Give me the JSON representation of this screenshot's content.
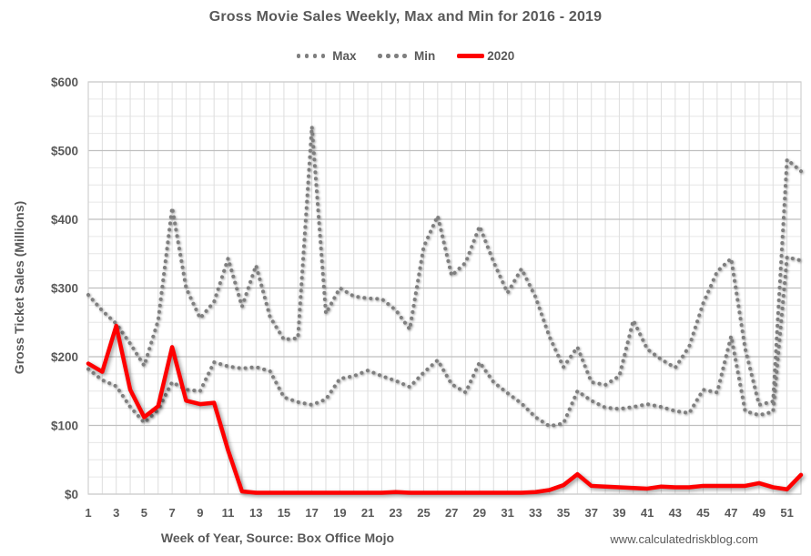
{
  "title": "Gross Movie Sales Weekly, Max and Min for 2016 - 2019",
  "legend": [
    {
      "label": "Max",
      "style": "dotted",
      "color": "#7f7f7f"
    },
    {
      "label": "Min",
      "style": "dotted",
      "color": "#7f7f7f"
    },
    {
      "label": "2020",
      "style": "solid",
      "color": "#fe0000"
    }
  ],
  "x_axis": {
    "title": "Week of Year, Source: Box Office Mojo",
    "tick_labels": [
      "1",
      "3",
      "5",
      "7",
      "9",
      "11",
      "13",
      "15",
      "17",
      "19",
      "21",
      "23",
      "25",
      "27",
      "29",
      "31",
      "33",
      "35",
      "37",
      "39",
      "41",
      "43",
      "45",
      "47",
      "49",
      "51"
    ]
  },
  "y_axis": {
    "title": "Gross Ticket Sales (Millions)",
    "tick_labels": [
      "$0",
      "$100",
      "$200",
      "$300",
      "$400",
      "$500",
      "$600"
    ]
  },
  "watermark": "www.calculatedriskblog.com",
  "colors": {
    "text": "#595959",
    "dotted_series": "#7f7f7f",
    "red_series": "#fe0000",
    "major_gridline": "#bfbfbf",
    "minor_gridline": "#e6e6e6",
    "weekly_gridline": "#dedede",
    "plot_border": "#d0d0d0"
  },
  "chart_data": {
    "type": "line",
    "x": [
      1,
      2,
      3,
      4,
      5,
      6,
      7,
      8,
      9,
      10,
      11,
      12,
      13,
      14,
      15,
      16,
      17,
      18,
      19,
      20,
      21,
      22,
      23,
      24,
      25,
      26,
      27,
      28,
      29,
      30,
      31,
      32,
      33,
      34,
      35,
      36,
      37,
      38,
      39,
      40,
      41,
      42,
      43,
      44,
      45,
      46,
      47,
      48,
      49,
      50,
      51,
      52
    ],
    "xlabel": "Week of Year, Source: Box Office Mojo",
    "ylabel": "Gross Ticket Sales (Millions)",
    "xlim": [
      1,
      52
    ],
    "ylim": [
      0,
      600
    ],
    "y_major_step": 100,
    "y_minor_step": 25,
    "grid": true,
    "legend_position": "top",
    "series": [
      {
        "name": "Max",
        "style": "dotted",
        "color": "#7f7f7f",
        "values": [
          290,
          267,
          248,
          219,
          187,
          253,
          417,
          300,
          256,
          280,
          343,
          273,
          333,
          258,
          225,
          227,
          535,
          263,
          300,
          288,
          285,
          284,
          268,
          240,
          360,
          405,
          318,
          337,
          390,
          338,
          293,
          328,
          287,
          229,
          185,
          214,
          163,
          159,
          172,
          253,
          211,
          196,
          184,
          215,
          278,
          324,
          343,
          212,
          130,
          135,
          487,
          470
        ]
      },
      {
        "name": "Min",
        "style": "dotted",
        "color": "#7f7f7f",
        "values": [
          182,
          166,
          157,
          127,
          104,
          123,
          163,
          152,
          150,
          192,
          186,
          183,
          185,
          179,
          141,
          134,
          130,
          138,
          168,
          172,
          180,
          172,
          165,
          156,
          177,
          195,
          160,
          148,
          192,
          163,
          147,
          132,
          112,
          99,
          103,
          150,
          136,
          126,
          124,
          127,
          131,
          127,
          121,
          118,
          152,
          148,
          230,
          121,
          115,
          120,
          345,
          340
        ]
      },
      {
        "name": "2020",
        "style": "solid",
        "color": "#fe0000",
        "values": [
          190,
          178,
          245,
          152,
          112,
          128,
          214,
          136,
          131,
          133,
          64,
          4,
          2,
          2,
          2,
          2,
          2,
          2,
          2,
          2,
          2,
          2,
          3,
          2,
          2,
          2,
          2,
          2,
          2,
          2,
          2,
          2,
          3,
          6,
          13,
          29,
          12,
          11,
          10,
          9,
          8,
          11,
          10,
          10,
          12,
          12,
          12,
          12,
          16,
          10,
          7,
          28
        ]
      }
    ]
  }
}
